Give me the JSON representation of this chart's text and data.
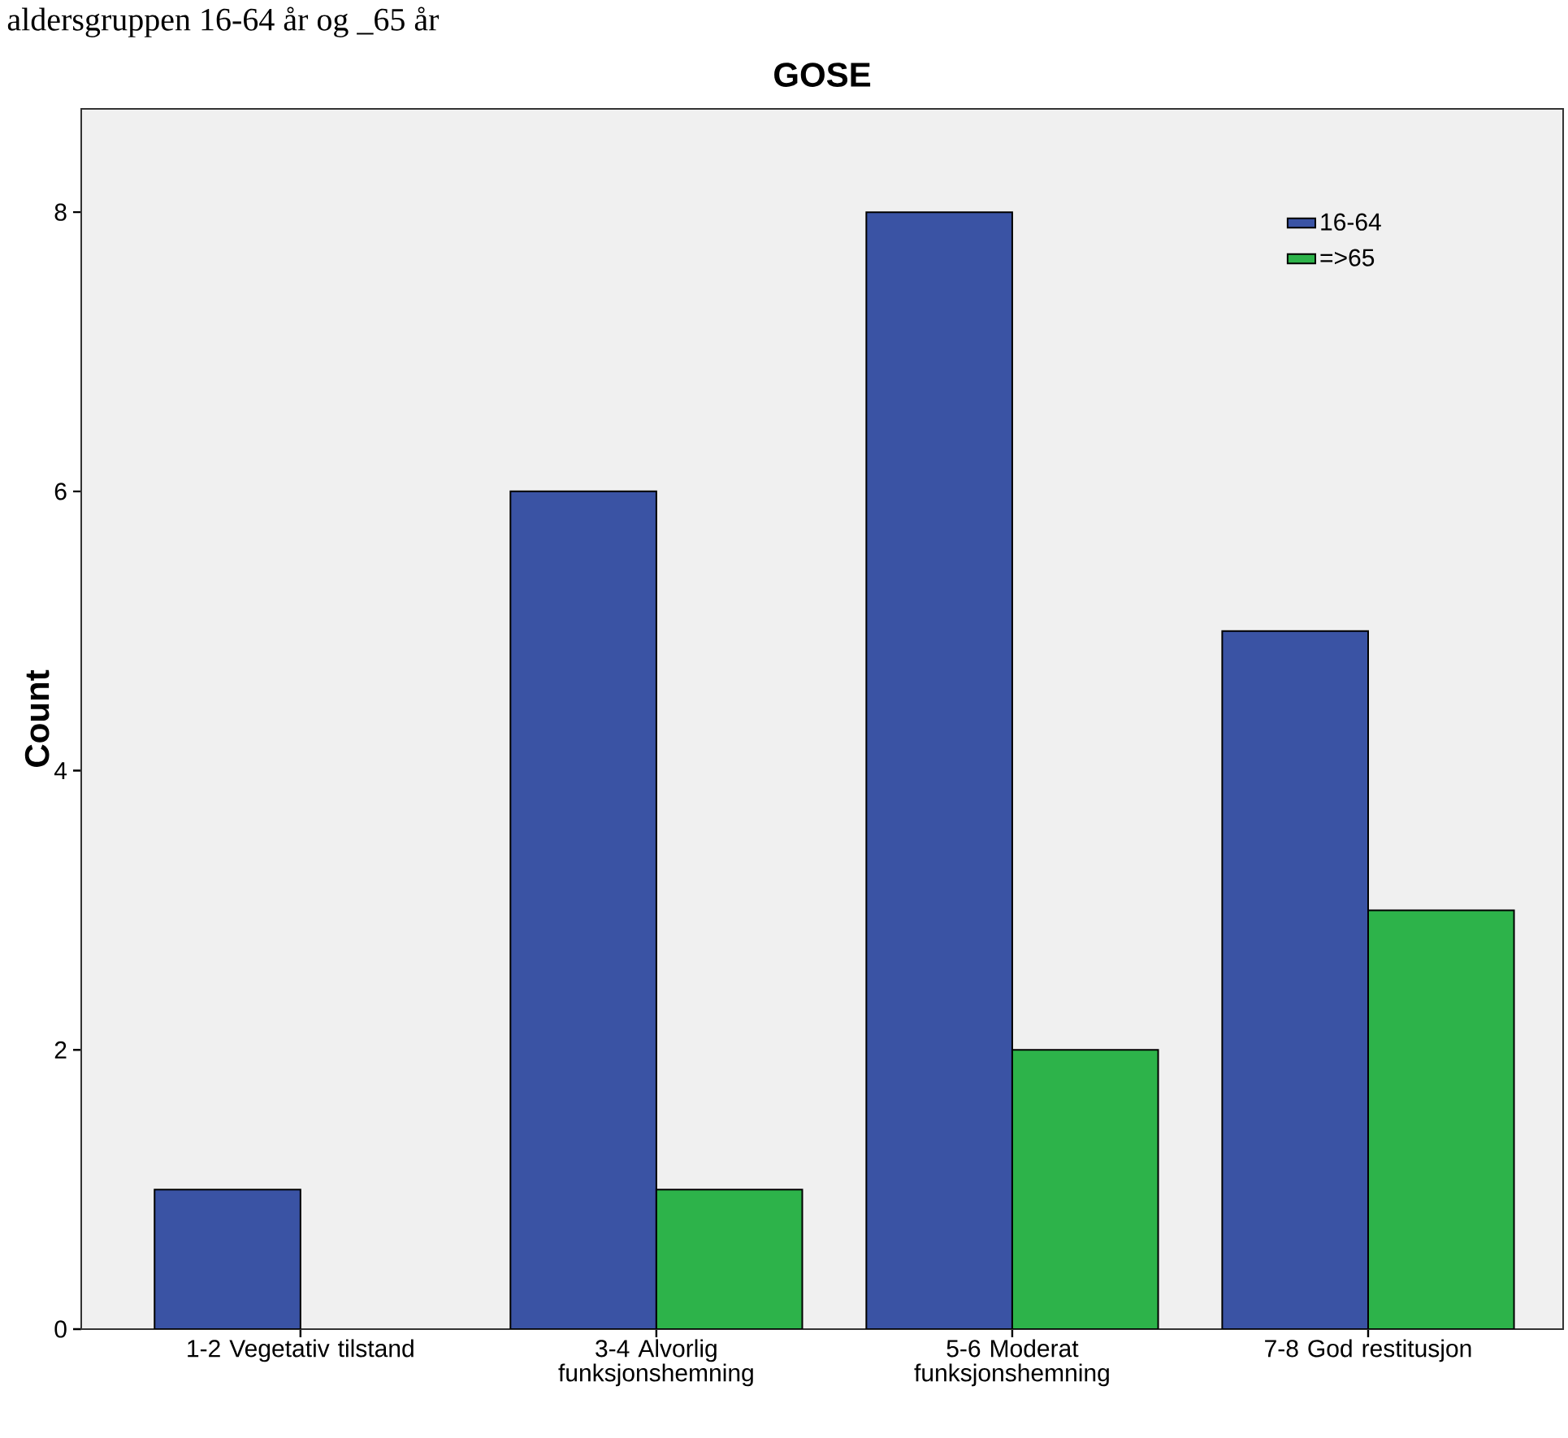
{
  "chart_data": {
    "type": "bar",
    "title": "GOSE",
    "ylabel": "Count",
    "annotations": [
      "aldersgruppen 16-64 år og _65 år"
    ],
    "categories": [
      "1-2 Vegetativ tilstand",
      "3-4 Alvorlig funksjonshemning",
      "5-6 Moderat funksjonshemning",
      "7-8 God restitusjon"
    ],
    "series": [
      {
        "name": "16-64",
        "color": "#3a53a4",
        "values": [
          1,
          6,
          8,
          5
        ]
      },
      {
        "name": "=>65",
        "color": "#2db34a",
        "values": [
          null,
          1,
          2,
          3
        ]
      }
    ],
    "ylim": [
      0,
      8.74
    ],
    "yticks": [
      0,
      2,
      4,
      6,
      8
    ],
    "grid": false,
    "legend": "top right"
  }
}
